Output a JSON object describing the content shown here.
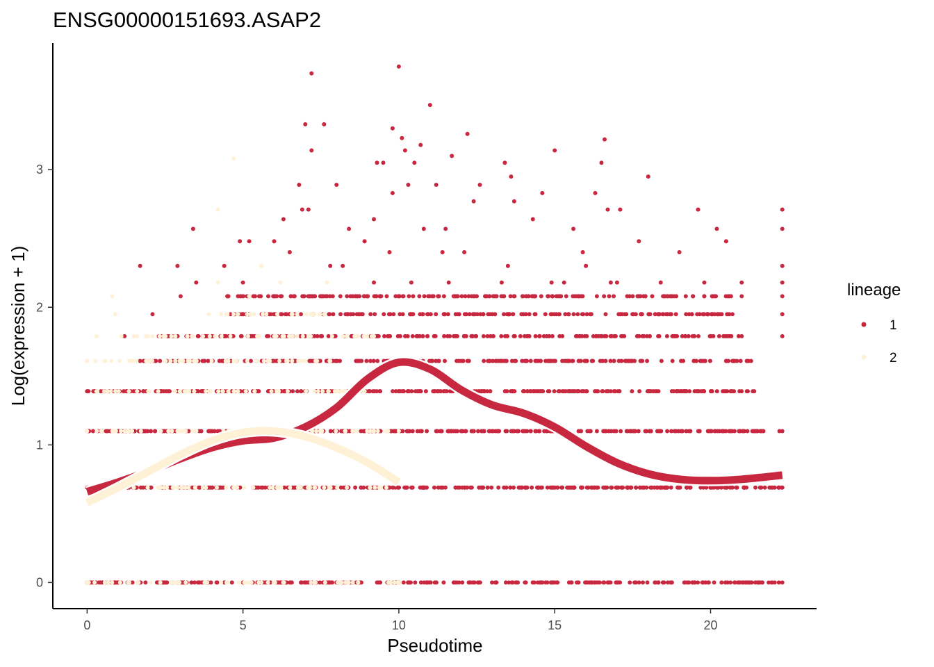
{
  "chart_data": {
    "type": "scatter",
    "title": "ENSG00000151693.ASAP2",
    "xlabel": "Pseudotime",
    "ylabel": "Log(expression + 1)",
    "xlim": [
      -1.1,
      23.4
    ],
    "ylim": [
      -0.19,
      3.92
    ],
    "xticks": [
      0,
      5,
      10,
      15,
      20
    ],
    "yticks": [
      0,
      1,
      2,
      3
    ],
    "grid": false,
    "legend": {
      "title": "lineage",
      "position": "right",
      "entries": [
        {
          "label": "1",
          "color": "#C8283F"
        },
        {
          "label": "2",
          "color": "#FFF1D6"
        }
      ]
    },
    "series": [
      {
        "name": "1",
        "color": "#C8283F",
        "points": [
          [
            7.2,
            3.7
          ],
          [
            10.0,
            3.75
          ],
          [
            11.0,
            3.47
          ],
          [
            7.0,
            3.33
          ],
          [
            7.6,
            3.33
          ],
          [
            9.8,
            3.3
          ],
          [
            10.1,
            3.23
          ],
          [
            12.2,
            3.26
          ],
          [
            16.6,
            3.22
          ],
          [
            7.2,
            3.14
          ],
          [
            10.2,
            3.14
          ],
          [
            10.7,
            3.18
          ],
          [
            11.7,
            3.1
          ],
          [
            13.4,
            3.05
          ],
          [
            15.0,
            3.14
          ],
          [
            9.3,
            3.05
          ],
          [
            9.5,
            3.05
          ],
          [
            10.5,
            3.05
          ],
          [
            16.5,
            3.05
          ],
          [
            9.8,
            2.83
          ],
          [
            10.3,
            2.89
          ],
          [
            11.2,
            2.89
          ],
          [
            12.6,
            2.89
          ],
          [
            13.6,
            2.95
          ],
          [
            6.8,
            2.89
          ],
          [
            8.0,
            2.89
          ],
          [
            18.0,
            2.95
          ],
          [
            16.3,
            2.83
          ],
          [
            17.1,
            2.71
          ],
          [
            3.4,
            2.57
          ],
          [
            6.9,
            2.71
          ],
          [
            7.1,
            2.71
          ],
          [
            9.2,
            2.64
          ],
          [
            10.8,
            2.57
          ],
          [
            11.5,
            2.57
          ],
          [
            12.4,
            2.77
          ],
          [
            13.7,
            2.77
          ],
          [
            14.6,
            2.83
          ],
          [
            15.6,
            2.57
          ],
          [
            16.7,
            2.71
          ],
          [
            19.6,
            2.71
          ],
          [
            20.2,
            2.57
          ],
          [
            20.5,
            2.48
          ],
          [
            22.3,
            2.71
          ],
          [
            22.3,
            2.57
          ],
          [
            6.3,
            2.64
          ],
          [
            8.4,
            2.57
          ],
          [
            8.9,
            2.48
          ],
          [
            4.9,
            2.48
          ],
          [
            5.2,
            2.48
          ],
          [
            6.0,
            2.48
          ],
          [
            14.3,
            2.64
          ],
          [
            15.9,
            2.4
          ],
          [
            17.7,
            2.48
          ],
          [
            19.0,
            2.4
          ],
          [
            21.0,
            2.18
          ],
          [
            1.7,
            2.3
          ],
          [
            2.9,
            2.3
          ],
          [
            4.4,
            2.3
          ],
          [
            6.5,
            2.4
          ],
          [
            7.8,
            2.3
          ],
          [
            8.2,
            2.3
          ],
          [
            9.7,
            2.4
          ],
          [
            11.4,
            2.4
          ],
          [
            12.1,
            2.4
          ],
          [
            13.5,
            2.3
          ],
          [
            14.9,
            2.18
          ],
          [
            16.0,
            2.3
          ],
          [
            17.0,
            2.18
          ],
          [
            18.4,
            2.18
          ],
          [
            19.8,
            2.18
          ],
          [
            22.3,
            2.3
          ],
          [
            22.3,
            2.18
          ],
          [
            2.1,
            1.95
          ],
          [
            3.5,
            2.18
          ],
          [
            5.0,
            2.18
          ],
          [
            9.2,
            2.18
          ],
          [
            10.4,
            2.18
          ],
          [
            11.6,
            2.18
          ],
          [
            13.3,
            2.18
          ],
          [
            15.3,
            2.18
          ],
          [
            16.8,
            2.18
          ],
          [
            18.9,
            2.08
          ],
          [
            20.6,
            2.08
          ],
          [
            22.3,
            2.08
          ],
          [
            22.3,
            1.95
          ],
          [
            1.2,
            1.79
          ],
          [
            2.4,
            1.79
          ],
          [
            21.0,
            1.79
          ],
          [
            20.7,
            1.95
          ],
          [
            22.3,
            1.79
          ],
          [
            3.0,
            2.08
          ],
          [
            4.5,
            2.08
          ],
          [
            12.8,
            2.08
          ],
          [
            14.1,
            2.08
          ],
          [
            17.4,
            2.08
          ]
        ],
        "lines": [
          {
            "y": 1.61,
            "xrange": [
              1.7,
              21.3
            ]
          },
          {
            "y": 1.39,
            "xrange": [
              0.0,
              21.4
            ]
          },
          {
            "y": 1.1,
            "xrange": [
              0.0,
              22.3
            ]
          },
          {
            "y": 0.69,
            "xrange": [
              0.0,
              22.3
            ]
          },
          {
            "y": 0.0,
            "xrange": [
              0.0,
              22.3
            ]
          },
          {
            "y": 1.79,
            "xrange": [
              2.3,
              20.9
            ]
          },
          {
            "y": 1.95,
            "xrange": [
              4.6,
              20.6
            ]
          },
          {
            "y": 2.08,
            "xrange": [
              4.5,
              21.0
            ]
          }
        ],
        "curve": [
          [
            0,
            0.66
          ],
          [
            1,
            0.73
          ],
          [
            2,
            0.81
          ],
          [
            3,
            0.9
          ],
          [
            4,
            0.98
          ],
          [
            5,
            1.03
          ],
          [
            6,
            1.05
          ],
          [
            7,
            1.13
          ],
          [
            8,
            1.27
          ],
          [
            9,
            1.48
          ],
          [
            10,
            1.6
          ],
          [
            11,
            1.55
          ],
          [
            12,
            1.4
          ],
          [
            13,
            1.29
          ],
          [
            14,
            1.23
          ],
          [
            15,
            1.13
          ],
          [
            16,
            0.99
          ],
          [
            17,
            0.87
          ],
          [
            18,
            0.79
          ],
          [
            19,
            0.75
          ],
          [
            20,
            0.74
          ],
          [
            21,
            0.75
          ],
          [
            22.3,
            0.78
          ]
        ]
      },
      {
        "name": "2",
        "color": "#FFF1D6",
        "points": [
          [
            4.7,
            3.08
          ],
          [
            4.2,
            2.71
          ],
          [
            0.8,
            2.08
          ],
          [
            0.9,
            1.95
          ],
          [
            1.1,
            1.79
          ],
          [
            5.2,
            2.08
          ],
          [
            6.2,
            2.18
          ],
          [
            5.6,
            2.3
          ],
          [
            0.3,
            1.79
          ],
          [
            0.0,
            1.61
          ],
          [
            1.6,
            1.79
          ],
          [
            7.1,
            1.79
          ],
          [
            7.7,
            2.18
          ],
          [
            9.2,
            1.79
          ],
          [
            3.9,
            1.95
          ],
          [
            4.2,
            2.18
          ]
        ],
        "lines": [
          {
            "y": 1.61,
            "xrange": [
              0.0,
              7.8
            ]
          },
          {
            "y": 1.39,
            "xrange": [
              0.3,
              8.9
            ]
          },
          {
            "y": 1.1,
            "xrange": [
              0.0,
              10.0
            ]
          },
          {
            "y": 0.69,
            "xrange": [
              1.5,
              9.6
            ]
          },
          {
            "y": 0.0,
            "xrange": [
              0.0,
              10.0
            ]
          },
          {
            "y": 1.79,
            "xrange": [
              1.5,
              9.2
            ]
          },
          {
            "y": 1.95,
            "xrange": [
              4.3,
              7.6
            ]
          }
        ],
        "curve": [
          [
            0,
            0.58
          ],
          [
            1,
            0.69
          ],
          [
            2,
            0.81
          ],
          [
            3,
            0.93
          ],
          [
            4,
            1.03
          ],
          [
            5,
            1.09
          ],
          [
            6,
            1.1
          ],
          [
            7,
            1.06
          ],
          [
            8,
            0.98
          ],
          [
            9,
            0.87
          ],
          [
            10,
            0.73
          ]
        ]
      }
    ]
  }
}
